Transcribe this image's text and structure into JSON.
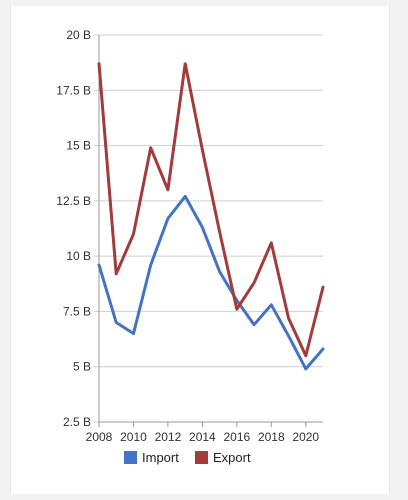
{
  "chart_data": {
    "type": "line",
    "title": "",
    "xlabel": "",
    "ylabel": "",
    "x": [
      2008,
      2009,
      2010,
      2011,
      2012,
      2013,
      2014,
      2015,
      2016,
      2017,
      2018,
      2019,
      2020,
      2021
    ],
    "x_ticks": [
      "2008",
      "2010",
      "2012",
      "2014",
      "2016",
      "2018",
      "2020"
    ],
    "y_ticks": [
      "2.5 B",
      "5 B",
      "7.5 B",
      "10 B",
      "12.5 B",
      "15 B",
      "17.5 B",
      "20 B"
    ],
    "ylim": [
      2.5,
      20
    ],
    "y_unit": "B",
    "grid": true,
    "legend_position": "bottom",
    "series": [
      {
        "name": "Import",
        "color": "#4472c4",
        "values": [
          9.6,
          7.0,
          6.5,
          9.6,
          11.7,
          12.7,
          11.3,
          9.3,
          8.0,
          6.9,
          7.8,
          6.4,
          4.9,
          5.8
        ]
      },
      {
        "name": "Export",
        "color": "#a33b3b",
        "values": [
          18.7,
          9.2,
          11.0,
          14.9,
          13.0,
          18.7,
          14.8,
          11.1,
          7.6,
          8.8,
          10.6,
          7.2,
          5.5,
          8.6
        ]
      }
    ]
  }
}
